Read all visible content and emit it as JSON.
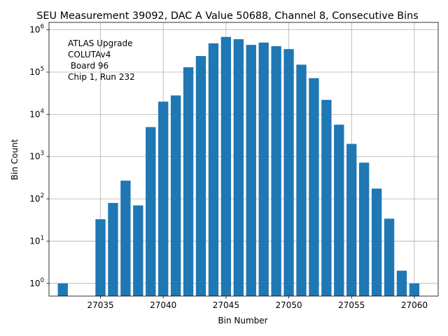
{
  "chart_data": {
    "type": "bar",
    "title": "SEU Measurement 39092, DAC A Value 50688, Channel 8, Consecutive Bins",
    "xlabel": "Bin Number",
    "ylabel": "Bin Count",
    "y_scale": "log",
    "ylim": [
      0.5,
      1500000
    ],
    "xlim": [
      27030.9,
      27061.9
    ],
    "grid": true,
    "bar_color": "#1f77b4",
    "x_ticks": [
      27035,
      27040,
      27045,
      27050,
      27055,
      27060
    ],
    "x_tick_labels": [
      "27035",
      "27040",
      "27045",
      "27050",
      "27055",
      "27060"
    ],
    "y_ticks": [
      1,
      10,
      100,
      1000,
      10000,
      100000,
      1000000
    ],
    "y_tick_labels": [
      {
        "base": "10",
        "exp": "0"
      },
      {
        "base": "10",
        "exp": "1"
      },
      {
        "base": "10",
        "exp": "2"
      },
      {
        "base": "10",
        "exp": "3"
      },
      {
        "base": "10",
        "exp": "4"
      },
      {
        "base": "10",
        "exp": "5"
      },
      {
        "base": "10",
        "exp": "6"
      }
    ],
    "annotation": [
      "ATLAS Upgrade",
      "COLUTAv4",
      " Board 96",
      "Chip 1, Run 232"
    ],
    "bars": [
      {
        "x": 27032,
        "y": 1
      },
      {
        "x": 27035,
        "y": 33
      },
      {
        "x": 27036,
        "y": 80
      },
      {
        "x": 27037,
        "y": 270
      },
      {
        "x": 27038,
        "y": 70
      },
      {
        "x": 27039,
        "y": 5000
      },
      {
        "x": 27040,
        "y": 20000
      },
      {
        "x": 27041,
        "y": 28000
      },
      {
        "x": 27042,
        "y": 130000
      },
      {
        "x": 27043,
        "y": 240000
      },
      {
        "x": 27044,
        "y": 480000
      },
      {
        "x": 27045,
        "y": 680000
      },
      {
        "x": 27046,
        "y": 600000
      },
      {
        "x": 27047,
        "y": 440000
      },
      {
        "x": 27048,
        "y": 500000
      },
      {
        "x": 27049,
        "y": 410000
      },
      {
        "x": 27050,
        "y": 350000
      },
      {
        "x": 27051,
        "y": 150000
      },
      {
        "x": 27052,
        "y": 72000
      },
      {
        "x": 27053,
        "y": 22000
      },
      {
        "x": 27054,
        "y": 5700
      },
      {
        "x": 27055,
        "y": 2000
      },
      {
        "x": 27056,
        "y": 720
      },
      {
        "x": 27057,
        "y": 175
      },
      {
        "x": 27058,
        "y": 34
      },
      {
        "x": 27059,
        "y": 2
      },
      {
        "x": 27060,
        "y": 1
      }
    ]
  }
}
